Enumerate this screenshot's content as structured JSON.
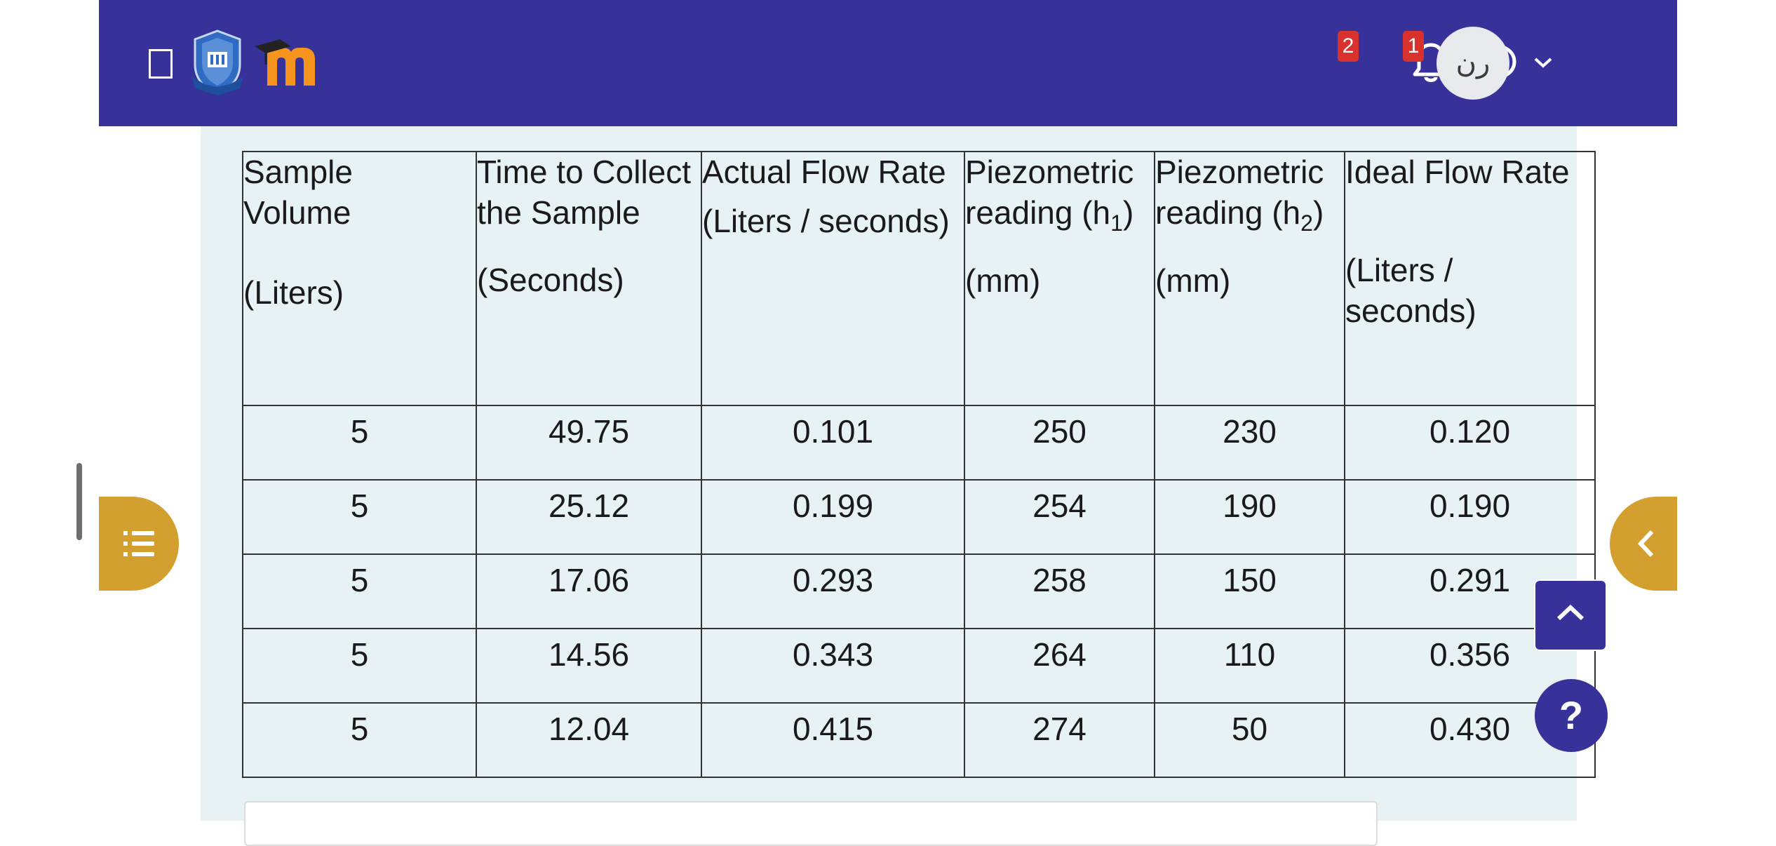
{
  "header": {
    "notifications": {
      "icon": "bell-icon",
      "count": "2"
    },
    "messages": {
      "icon": "chat-bubble-icon",
      "count": "1"
    },
    "user": {
      "initials": "رن",
      "menu_icon": "chevron-down-icon"
    }
  },
  "table": {
    "headers": [
      [
        "Sample",
        "Volume",
        "",
        "(Liters)"
      ],
      [
        "Time to Collect",
        "the Sample",
        "(Seconds)"
      ],
      [
        "Actual Flow Rate",
        "(Liters / seconds)"
      ],
      [
        "Piezometric",
        "reading (h",
        "(mm)"
      ],
      [
        "Piezometric",
        "reading (h",
        "(mm)"
      ],
      [
        "Ideal Flow Rate",
        "",
        "(Liters /",
        "seconds)"
      ]
    ],
    "subscripts": [
      "1",
      "2"
    ],
    "rows": [
      [
        "5",
        "49.75",
        "0.101",
        "250",
        "230",
        "0.120"
      ],
      [
        "5",
        "25.12",
        "0.199",
        "254",
        "190",
        "0.190"
      ],
      [
        "5",
        "17.06",
        "0.293",
        "258",
        "150",
        "0.291"
      ],
      [
        "5",
        "14.56",
        "0.343",
        "264",
        "110",
        "0.356"
      ],
      [
        "5",
        "12.04",
        "0.415",
        "274",
        "50",
        "0.430"
      ]
    ]
  },
  "floating": {
    "index_drawer_icon": "list-icon",
    "block_drawer_icon": "chevron-left-icon",
    "back_to_top_icon": "chevron-up-icon",
    "help_label": "?"
  },
  "colors": {
    "navbar": "#36329a",
    "accent": "#d39f2f",
    "badge": "#d9322c",
    "content_bg": "#e6f2f3"
  }
}
